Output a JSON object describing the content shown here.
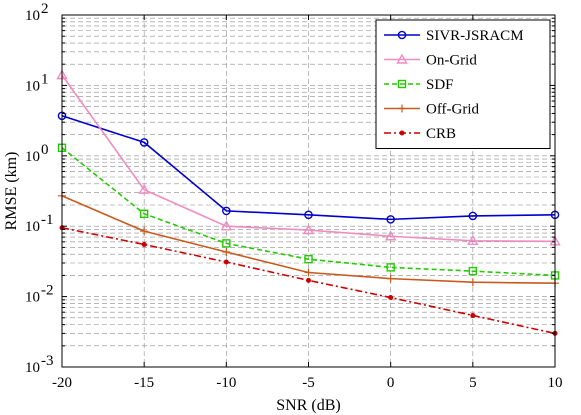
{
  "chart_data": {
    "type": "line",
    "xlabel": "SNR (dB)",
    "ylabel": "RMSE (km)",
    "x": [
      -20,
      -15,
      -10,
      -5,
      0,
      5,
      10
    ],
    "xlim": [
      -20,
      10
    ],
    "ylim": [
      0.001,
      100
    ],
    "yscale": "log",
    "grid": true,
    "legend_position": "top-right",
    "x_ticks": [
      "-20",
      "-15",
      "-10",
      "-5",
      "0",
      "5",
      "10"
    ],
    "y_ticks": [
      {
        "base": "10",
        "exp": "-3"
      },
      {
        "base": "10",
        "exp": "-2"
      },
      {
        "base": "10",
        "exp": "-1"
      },
      {
        "base": "10",
        "exp": "0"
      },
      {
        "base": "10",
        "exp": "1"
      },
      {
        "base": "10",
        "exp": "2"
      }
    ],
    "series": [
      {
        "name": "SIVR-JSRACM",
        "color": "#0000cc",
        "dash": "solid",
        "marker": "circle",
        "values": [
          3.7,
          1.55,
          0.165,
          0.145,
          0.125,
          0.14,
          0.145
        ]
      },
      {
        "name": "On-Grid",
        "color": "#f08cc0",
        "dash": "solid",
        "marker": "triangle",
        "values": [
          14,
          0.33,
          0.1,
          0.088,
          0.072,
          0.062,
          0.061
        ]
      },
      {
        "name": "SDF",
        "color": "#22cc00",
        "dash": "dashed",
        "marker": "square",
        "values": [
          1.3,
          0.15,
          0.057,
          0.034,
          0.026,
          0.023,
          0.02
        ]
      },
      {
        "name": "Off-Grid",
        "color": "#c85a1e",
        "dash": "solid",
        "marker": "plus",
        "values": [
          0.27,
          0.085,
          0.043,
          0.022,
          0.018,
          0.016,
          0.0155
        ]
      },
      {
        "name": "CRB",
        "color": "#cc0000",
        "dash": "dashdot",
        "marker": "dot",
        "values": [
          0.095,
          0.055,
          0.031,
          0.017,
          0.0097,
          0.0054,
          0.003
        ]
      }
    ]
  }
}
